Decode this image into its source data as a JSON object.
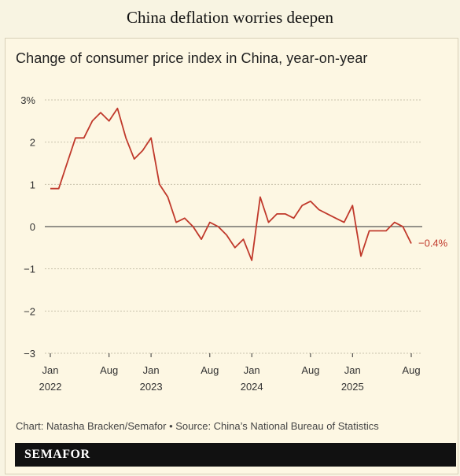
{
  "headline": "China deflation worries deepen",
  "credit": "Chart: Natasha Bracken/Semafor • Source: China’s National Bureau of Statistics",
  "brand": "SEMAFOR",
  "colors": {
    "line": "#c0392b",
    "grid": "#c9c3ae",
    "zero": "#555555",
    "background": "#fdf7e3"
  },
  "chart_data": {
    "type": "line",
    "title": "Change of consumer price index in China, year-on-year",
    "xlabel": "",
    "ylabel": "",
    "ylim": [
      -3,
      3
    ],
    "y_ticks": [
      "3%",
      "2",
      "1",
      "0",
      "−1",
      "−2",
      "−3"
    ],
    "x_tick_labels": [
      {
        "month": "Jan",
        "year": "2022"
      },
      {
        "month": "Aug",
        "year": ""
      },
      {
        "month": "Jan",
        "year": "2023"
      },
      {
        "month": "Aug",
        "year": ""
      },
      {
        "month": "Jan",
        "year": "2024"
      },
      {
        "month": "Aug",
        "year": ""
      },
      {
        "month": "Jan",
        "year": "2025"
      },
      {
        "month": "Aug",
        "year": ""
      }
    ],
    "x_tick_dates": [
      "2022-01",
      "2022-08",
      "2023-01",
      "2023-08",
      "2024-01",
      "2024-08",
      "2025-01",
      "2025-08"
    ],
    "grid": true,
    "series": [
      {
        "x": [
          "2022-01",
          "2022-02",
          "2022-03",
          "2022-04",
          "2022-05",
          "2022-06",
          "2022-07",
          "2022-08",
          "2022-09",
          "2022-10",
          "2022-11",
          "2022-12",
          "2023-01",
          "2023-02",
          "2023-03",
          "2023-04",
          "2023-05",
          "2023-06",
          "2023-07",
          "2023-08",
          "2023-09",
          "2023-10",
          "2023-11",
          "2023-12",
          "2024-01",
          "2024-02",
          "2024-03",
          "2024-04",
          "2024-05",
          "2024-06",
          "2024-07",
          "2024-08",
          "2024-09",
          "2024-10",
          "2024-11",
          "2024-12",
          "2025-01",
          "2025-02",
          "2025-03",
          "2025-04",
          "2025-05",
          "2025-06",
          "2025-07",
          "2025-08"
        ],
        "values": [
          0.9,
          0.9,
          1.5,
          2.1,
          2.1,
          2.5,
          2.7,
          2.5,
          2.8,
          2.1,
          1.6,
          1.8,
          2.1,
          1.0,
          0.7,
          0.1,
          0.2,
          0.0,
          -0.3,
          0.1,
          0.0,
          -0.2,
          -0.5,
          -0.3,
          -0.8,
          0.7,
          0.1,
          0.3,
          0.3,
          0.2,
          0.5,
          0.6,
          0.4,
          0.3,
          0.2,
          0.1,
          0.5,
          -0.7,
          -0.1,
          -0.1,
          -0.1,
          0.1,
          0.0,
          -0.4
        ]
      }
    ],
    "annotations": [
      {
        "text": "−0.4%",
        "x": "2025-08",
        "y": -0.4
      }
    ]
  }
}
